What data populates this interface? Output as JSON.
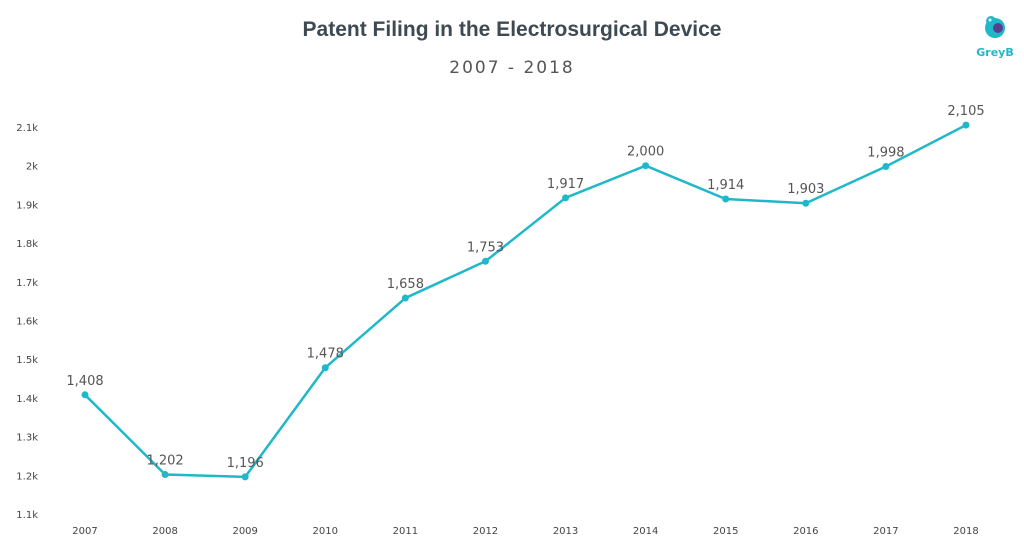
{
  "title": "Patent Filing in the Electrosurgical Device",
  "subtitle": "2007 - 2018",
  "logo": {
    "text": "GreyB",
    "icon": "greyb-bird-icon",
    "color": "#1fb8c9"
  },
  "chart_data": {
    "type": "line",
    "title": "Patent Filing in the Electrosurgical Device",
    "subtitle": "2007 - 2018",
    "xlabel": "",
    "ylabel": "",
    "categories": [
      "2007",
      "2008",
      "2009",
      "2010",
      "2011",
      "2012",
      "2013",
      "2014",
      "2015",
      "2016",
      "2017",
      "2018"
    ],
    "series": [
      {
        "values": [
          1408,
          1202,
          1196,
          1478,
          1658,
          1753,
          1917,
          2000,
          1914,
          1903,
          1998,
          2105
        ],
        "labels": [
          "1,408",
          "1,202",
          "1,196",
          "1,478",
          "1,658",
          "1,753",
          "1,917",
          "2,000",
          "1,914",
          "1,903",
          "1,998",
          "2,105"
        ],
        "color": "#1fb8c9"
      }
    ],
    "ylim": [
      1100,
      2100
    ],
    "yticks": [
      1100,
      1200,
      1300,
      1400,
      1500,
      1600,
      1700,
      1800,
      1900,
      2000,
      2100
    ],
    "ytick_labels": [
      "1.1k",
      "1.2k",
      "1.3k",
      "1.4k",
      "1.5k",
      "1.6k",
      "1.7k",
      "1.8k",
      "1.9k",
      "2k",
      "2.1k"
    ],
    "grid": false,
    "legend": "none"
  }
}
